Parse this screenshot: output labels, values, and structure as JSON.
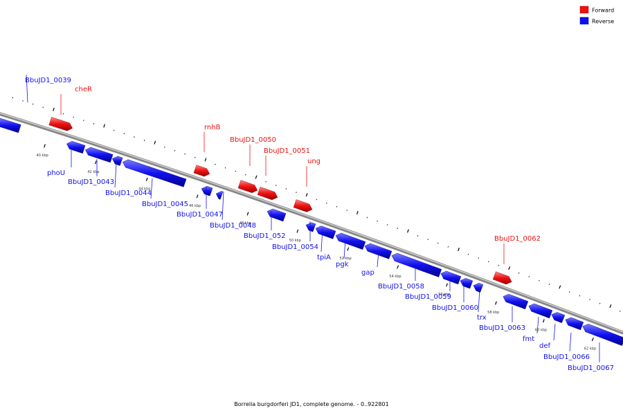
{
  "legend": {
    "forward": {
      "label": "Forward",
      "color": "#ee1111"
    },
    "reverse": {
      "label": "Reverse",
      "color": "#1111ee"
    }
  },
  "caption": "Borrelia burgdorferi JD1, complete genome. - 0..922801",
  "scale": {
    "ticks": [
      "40 kbp",
      "42 kbp",
      "44 kbp",
      "46 kbp",
      "48 kbp",
      "50 kbp",
      "52 kbp",
      "54 kbp",
      "56 kbp",
      "58 kbp",
      "60 kbp",
      "62 kbp"
    ]
  },
  "genes": [
    {
      "name": "BbuJD1_0039",
      "strand": "reverse"
    },
    {
      "name": "cheR",
      "strand": "forward"
    },
    {
      "name": "phoU",
      "strand": "reverse"
    },
    {
      "name": "BbuJD1_0043",
      "strand": "reverse"
    },
    {
      "name": "BbuJD1_0044",
      "strand": "reverse"
    },
    {
      "name": "BbuJD1_0045",
      "strand": "reverse"
    },
    {
      "name": "rnhB",
      "strand": "forward"
    },
    {
      "name": "BbuJD1_0047",
      "strand": "reverse"
    },
    {
      "name": "BbuJD1_0048",
      "strand": "reverse"
    },
    {
      "name": "BbuJD1_0050",
      "strand": "forward"
    },
    {
      "name": "BbuJD1_0051",
      "strand": "forward"
    },
    {
      "name": "ung",
      "strand": "forward"
    },
    {
      "name": "BbuJD1_052",
      "strand": "reverse"
    },
    {
      "name": "BbuJD1_0054",
      "strand": "reverse"
    },
    {
      "name": "tpiA",
      "strand": "reverse"
    },
    {
      "name": "pgk",
      "strand": "reverse"
    },
    {
      "name": "gap",
      "strand": "reverse"
    },
    {
      "name": "BbuJD1_0058",
      "strand": "reverse"
    },
    {
      "name": "BbuJD1_0059",
      "strand": "reverse"
    },
    {
      "name": "BbuJD1_0060",
      "strand": "reverse"
    },
    {
      "name": "trx",
      "strand": "reverse"
    },
    {
      "name": "BbuJD1_0062",
      "strand": "forward"
    },
    {
      "name": "BbuJD1_0063",
      "strand": "reverse"
    },
    {
      "name": "fmt",
      "strand": "reverse"
    },
    {
      "name": "def",
      "strand": "reverse"
    },
    {
      "name": "BbuJD1_0066",
      "strand": "reverse"
    },
    {
      "name": "BbuJD1_0067",
      "strand": "reverse"
    }
  ]
}
